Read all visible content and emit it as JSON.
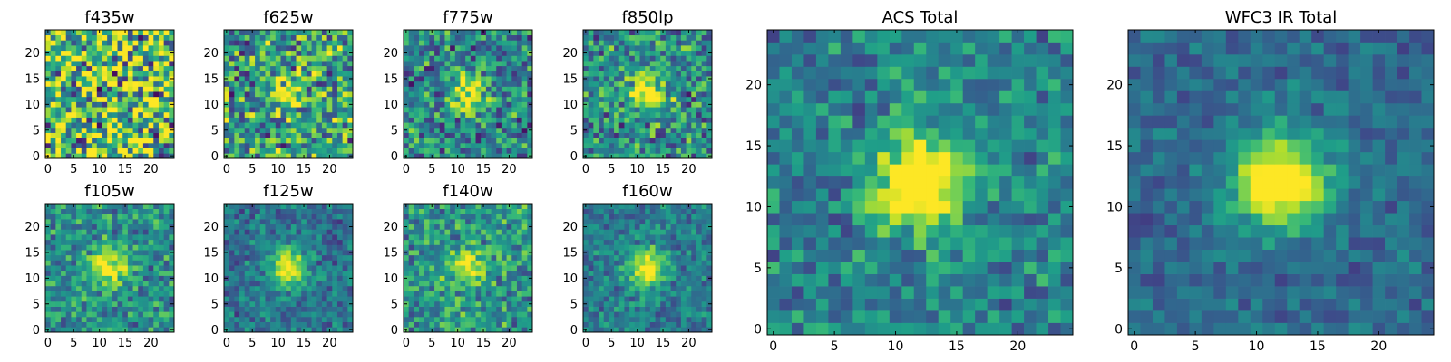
{
  "colormap": "viridis",
  "chart_data": [
    {
      "type": "heatmap",
      "title": "f435w",
      "shape": [
        25,
        25
      ],
      "xlim": [
        0,
        24
      ],
      "ylim": [
        0,
        24
      ],
      "xticks": [
        0,
        5,
        10,
        15,
        20
      ],
      "yticks": [
        0,
        5,
        10,
        15,
        20
      ],
      "source_peak": [
        12,
        12
      ],
      "source_strength": 0.0,
      "noise": 1.0,
      "base": 0.68
    },
    {
      "type": "heatmap",
      "title": "f625w",
      "shape": [
        25,
        25
      ],
      "xlim": [
        0,
        24
      ],
      "ylim": [
        0,
        24
      ],
      "xticks": [
        0,
        5,
        10,
        15,
        20
      ],
      "yticks": [
        0,
        5,
        10,
        15,
        20
      ],
      "source_peak": [
        12,
        12
      ],
      "source_strength": 0.35,
      "noise": 0.75,
      "base": 0.55
    },
    {
      "type": "heatmap",
      "title": "f775w",
      "shape": [
        25,
        25
      ],
      "xlim": [
        0,
        24
      ],
      "ylim": [
        0,
        24
      ],
      "xticks": [
        0,
        5,
        10,
        15,
        20
      ],
      "yticks": [
        0,
        5,
        10,
        15,
        20
      ],
      "source_peak": [
        12,
        12
      ],
      "source_strength": 0.55,
      "noise": 0.6,
      "base": 0.45
    },
    {
      "type": "heatmap",
      "title": "f850lp",
      "shape": [
        25,
        25
      ],
      "xlim": [
        0,
        24
      ],
      "ylim": [
        0,
        24
      ],
      "xticks": [
        0,
        5,
        10,
        15,
        20
      ],
      "yticks": [
        0,
        5,
        10,
        15,
        20
      ],
      "source_peak": [
        12,
        12
      ],
      "source_strength": 0.55,
      "noise": 0.6,
      "base": 0.48
    },
    {
      "type": "heatmap",
      "title": "f105w",
      "shape": [
        25,
        25
      ],
      "xlim": [
        0,
        24
      ],
      "ylim": [
        0,
        24
      ],
      "xticks": [
        0,
        5,
        10,
        15,
        20
      ],
      "yticks": [
        0,
        5,
        10,
        15,
        20
      ],
      "source_peak": [
        12,
        12
      ],
      "source_strength": 0.5,
      "noise": 0.45,
      "base": 0.5
    },
    {
      "type": "heatmap",
      "title": "f125w",
      "shape": [
        25,
        25
      ],
      "xlim": [
        0,
        24
      ],
      "ylim": [
        0,
        24
      ],
      "xticks": [
        0,
        5,
        10,
        15,
        20
      ],
      "yticks": [
        0,
        5,
        10,
        15,
        20
      ],
      "source_peak": [
        12,
        12
      ],
      "source_strength": 0.7,
      "noise": 0.35,
      "base": 0.38
    },
    {
      "type": "heatmap",
      "title": "f140w",
      "shape": [
        25,
        25
      ],
      "xlim": [
        0,
        24
      ],
      "ylim": [
        0,
        24
      ],
      "xticks": [
        0,
        5,
        10,
        15,
        20
      ],
      "yticks": [
        0,
        5,
        10,
        15,
        20
      ],
      "source_peak": [
        12,
        12
      ],
      "source_strength": 0.45,
      "noise": 0.5,
      "base": 0.52
    },
    {
      "type": "heatmap",
      "title": "f160w",
      "shape": [
        25,
        25
      ],
      "xlim": [
        0,
        24
      ],
      "ylim": [
        0,
        24
      ],
      "xticks": [
        0,
        5,
        10,
        15,
        20
      ],
      "yticks": [
        0,
        5,
        10,
        15,
        20
      ],
      "source_peak": [
        12,
        12
      ],
      "source_strength": 0.65,
      "noise": 0.35,
      "base": 0.42
    },
    {
      "type": "heatmap",
      "title": "ACS Total",
      "shape": [
        25,
        25
      ],
      "xlim": [
        0,
        24
      ],
      "ylim": [
        0,
        24
      ],
      "xticks": [
        0,
        5,
        10,
        15,
        20
      ],
      "yticks": [
        0,
        5,
        10,
        15,
        20
      ],
      "source_peak": [
        12,
        12
      ],
      "source_strength": 0.75,
      "noise": 0.4,
      "base": 0.45
    },
    {
      "type": "heatmap",
      "title": "WFC3 IR Total",
      "shape": [
        25,
        25
      ],
      "xlim": [
        0,
        24
      ],
      "ylim": [
        0,
        24
      ],
      "xticks": [
        0,
        5,
        10,
        15,
        20
      ],
      "yticks": [
        0,
        5,
        10,
        15,
        20
      ],
      "source_peak": [
        12,
        12
      ],
      "source_strength": 0.85,
      "noise": 0.25,
      "base": 0.35
    }
  ]
}
